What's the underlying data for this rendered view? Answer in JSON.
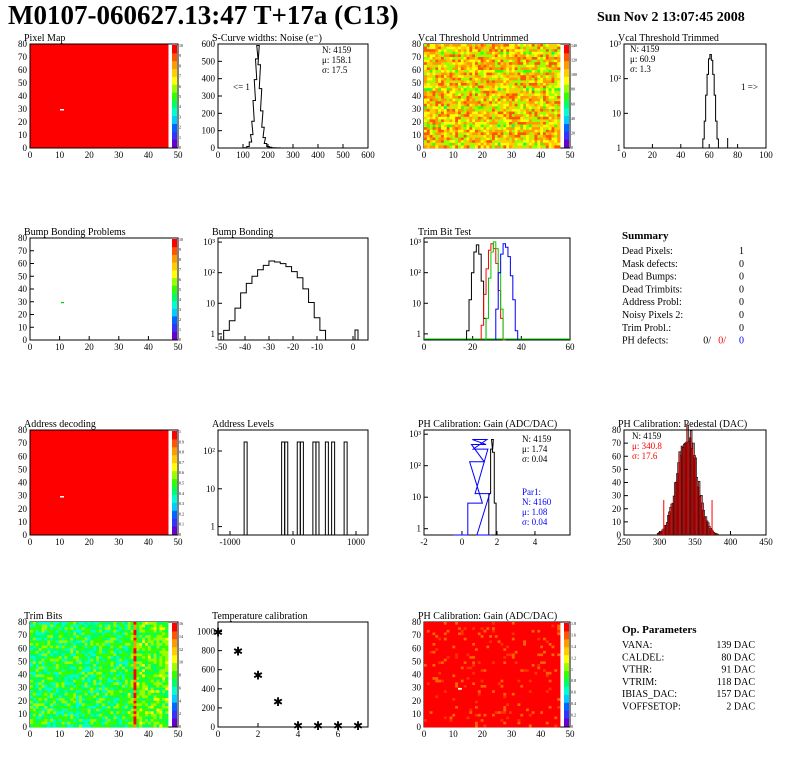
{
  "header": {
    "title": "M0107-060627.13:47 T+17a (C13)",
    "date": "Sun Nov  2 13:07:45 2008"
  },
  "colors": {
    "frame": "#000000",
    "hot_red": "#ff0000",
    "green": "#00cc00",
    "blue": "#0000ff",
    "pedestal_red": "#ff0000"
  },
  "chart_data": [
    {
      "type": "heatmap",
      "title": "Pixel Map",
      "x_ticks": [
        "0",
        "10",
        "20",
        "30",
        "40",
        "50"
      ],
      "y_ticks": [
        "0",
        "10",
        "20",
        "30",
        "40",
        "50",
        "60",
        "70",
        "80"
      ],
      "palette_labels": [
        "0",
        "1",
        "2",
        "3",
        "4",
        "5",
        "6",
        "7",
        "8",
        "9",
        "10"
      ],
      "description_values": {
        "uniform_value": 10,
        "dead_pixel_count": 1
      }
    },
    {
      "type": "line",
      "title": "S-Curve widths: Noise (e⁻)",
      "x_ticks": [
        "0",
        "100",
        "200",
        "300",
        "400",
        "500",
        "600"
      ],
      "y_ticks": [
        "0",
        "100",
        "200",
        "300",
        "400",
        "500",
        "600"
      ],
      "stats": [
        "N: 4159",
        "μ: 158.1",
        "σ: 17.5"
      ],
      "annotation": "<= 1",
      "xlim": [
        0,
        600
      ],
      "ylim": [
        0,
        700
      ],
      "x": [
        100,
        110,
        120,
        130,
        135,
        140,
        145,
        150,
        155,
        160,
        165,
        170,
        175,
        180,
        185,
        190,
        200,
        210,
        220,
        240,
        260
      ],
      "values": [
        0,
        2,
        10,
        40,
        90,
        180,
        320,
        460,
        600,
        690,
        560,
        400,
        250,
        140,
        70,
        30,
        10,
        5,
        2,
        1,
        0
      ]
    },
    {
      "type": "heatmap",
      "title": "Vcal Threshold Untrimmed",
      "x_ticks": [
        "0",
        "10",
        "20",
        "30",
        "40",
        "50"
      ],
      "y_ticks": [
        "0",
        "10",
        "20",
        "30",
        "40",
        "50",
        "60",
        "70",
        "80"
      ],
      "palette_labels": [
        "0",
        "20",
        "40",
        "60",
        "80",
        "100",
        "120",
        "140"
      ]
    },
    {
      "type": "line",
      "title": "Vcal Threshold Trimmed",
      "x_ticks": [
        "0",
        "20",
        "40",
        "60",
        "80",
        "100"
      ],
      "y_ticks": [
        "1",
        "10",
        "10²",
        "10³"
      ],
      "stats": [
        "N: 4159",
        "μ: 60.9",
        "σ: 1.3"
      ],
      "annotation": "1 =>",
      "log_y": true,
      "x": [
        55,
        56,
        57,
        58,
        59,
        60,
        61,
        62,
        63,
        64,
        65,
        66,
        67,
        68
      ],
      "values": [
        1,
        2,
        8,
        60,
        300,
        1000,
        1400,
        900,
        300,
        60,
        8,
        2,
        0,
        0
      ]
    },
    {
      "type": "heatmap",
      "title": "Bump Bonding Problems",
      "x_ticks": [
        "0",
        "10",
        "20",
        "30",
        "40",
        "50"
      ],
      "y_ticks": [
        "0",
        "10",
        "20",
        "30",
        "40",
        "50",
        "60",
        "70",
        "80"
      ],
      "palette_labels": [
        "0",
        "1",
        "2",
        "3",
        "4",
        "5",
        "6",
        "7",
        "8",
        "9",
        "10"
      ]
    },
    {
      "type": "line",
      "title": "Bump Bonding",
      "x_ticks": [
        "-50",
        "-40",
        "-30",
        "-20",
        "-10",
        "0"
      ],
      "y_ticks": [
        "1",
        "10",
        "10²",
        "10³"
      ],
      "log_y": true,
      "x": [
        -50,
        -48,
        -46,
        -44,
        -42,
        -40,
        -38,
        -36,
        -34,
        -32,
        -30,
        -28,
        -26,
        -24,
        -22,
        -20,
        -18,
        -16,
        -14,
        -12,
        -10
      ],
      "values": [
        1,
        2,
        4,
        10,
        30,
        60,
        100,
        160,
        220,
        300,
        280,
        250,
        200,
        140,
        90,
        40,
        15,
        5,
        2,
        1,
        1
      ]
    },
    {
      "type": "line",
      "title": "Trim Bit Test",
      "x_ticks": [
        "0",
        "20",
        "40",
        "60"
      ],
      "y_ticks": [
        "1",
        "10",
        "10²",
        "10³"
      ],
      "log_y": true,
      "series": [
        {
          "color": "#000000",
          "x": [
            18,
            19,
            20,
            21,
            22,
            23,
            24,
            25
          ],
          "values": [
            2,
            20,
            150,
            700,
            1200,
            600,
            80,
            5
          ]
        },
        {
          "color": "#ff0000",
          "x": [
            24,
            25,
            26,
            27,
            28,
            29,
            30,
            31,
            32,
            33
          ],
          "values": [
            3,
            30,
            200,
            800,
            1300,
            900,
            300,
            40,
            5,
            1
          ]
        },
        {
          "color": "#00cc00",
          "x": [
            26,
            27,
            28,
            29,
            30,
            31,
            32
          ],
          "values": [
            5,
            100,
            700,
            1500,
            900,
            150,
            10
          ]
        },
        {
          "color": "#0000ff",
          "x": [
            30,
            31,
            32,
            33,
            34,
            35,
            36,
            37,
            38
          ],
          "values": [
            10,
            150,
            600,
            1300,
            1000,
            500,
            120,
            20,
            2
          ]
        }
      ]
    },
    {
      "type": "table",
      "title": "Summary",
      "rows": [
        {
          "label": "Dead Pixels:",
          "value": "1"
        },
        {
          "label": "Mask defects:",
          "value": "0"
        },
        {
          "label": "Dead Bumps:",
          "value": "0"
        },
        {
          "label": "Dead Trimbits:",
          "value": "0"
        },
        {
          "label": "Address Probl:",
          "value": "0"
        },
        {
          "label": "Noisy Pixels 2:",
          "value": "0"
        },
        {
          "label": "Trim Probl.:",
          "value": "0"
        }
      ],
      "ph_defects": {
        "label": "PH defects:",
        "v1": "0/",
        "v2": "0/",
        "v3": "0"
      }
    },
    {
      "type": "heatmap",
      "title": "Address decoding",
      "x_ticks": [
        "0",
        "10",
        "20",
        "30",
        "40",
        "50"
      ],
      "y_ticks": [
        "0",
        "10",
        "20",
        "30",
        "40",
        "50",
        "60",
        "70",
        "80"
      ],
      "palette_labels": [
        "0",
        "0.1",
        "0.2",
        "0.3",
        "0.4",
        "0.5",
        "0.6",
        "0.7",
        "0.8",
        "0.9",
        "1"
      ]
    },
    {
      "type": "line",
      "title": "Address Levels",
      "x_ticks": [
        "-1000",
        "0",
        "1000"
      ],
      "y_ticks": [
        "1",
        "10",
        "10²"
      ],
      "log_y": true,
      "peaks": [
        -750,
        -150,
        -100,
        100,
        150,
        350,
        400,
        550,
        650,
        850
      ]
    },
    {
      "type": "line",
      "title": "PH Calibration: Gain (ADC/DAC)",
      "x_ticks": [
        "-2",
        "0",
        "2",
        "4"
      ],
      "y_ticks": [
        "1",
        "10",
        "10²",
        "10³"
      ],
      "stats": [
        "N: 4159",
        "μ: 1.74",
        "σ: 0.04"
      ],
      "stats2": [
        "Par1:",
        "N: 4160",
        "μ: 1.08",
        "σ: 0.04"
      ],
      "log_y": true,
      "series": [
        {
          "color": "#000000",
          "x": [
            1.5,
            1.6,
            1.7,
            1.75,
            1.8,
            1.9,
            2.0
          ],
          "values": [
            1,
            20,
            500,
            1000,
            400,
            10,
            1
          ]
        },
        {
          "color": "#0000ff",
          "x": [
            0.0,
            0.8,
            0.9,
            1.0,
            1.05,
            1.1,
            1.2,
            1.3
          ],
          "values": [
            1,
            10,
            200,
            700,
            1000,
            500,
            20,
            1
          ]
        }
      ]
    },
    {
      "type": "bar",
      "title": "PH Calibration: Pedestal (DAC)",
      "x_ticks": [
        "250",
        "300",
        "350",
        "400",
        "450"
      ],
      "y_ticks": [
        "0",
        "10",
        "20",
        "30",
        "40",
        "50",
        "60",
        "70",
        "80"
      ],
      "stats": [
        "N: 4159",
        "μ: 340.8",
        "σ: 17.6"
      ],
      "xlim": [
        230,
        480
      ],
      "ylim": [
        0,
        90
      ],
      "mean": 340.8,
      "sigma": 17.6,
      "peak": 85
    },
    {
      "type": "heatmap",
      "title": "Trim Bits",
      "x_ticks": [
        "0",
        "10",
        "20",
        "30",
        "40",
        "50"
      ],
      "y_ticks": [
        "0",
        "10",
        "20",
        "30",
        "40",
        "50",
        "60",
        "70",
        "80"
      ],
      "palette_labels": [
        "0",
        "2",
        "4",
        "6",
        "8",
        "10",
        "12",
        "14",
        "16"
      ]
    },
    {
      "type": "scatter",
      "title": "Temperature calibration",
      "x_ticks": [
        "0",
        "2",
        "4",
        "6"
      ],
      "y_ticks": [
        "0",
        "200",
        "400",
        "600",
        "800",
        "1000"
      ],
      "xlim": [
        0,
        7.5
      ],
      "ylim": [
        0,
        1100
      ],
      "x": [
        0,
        1,
        2,
        3,
        4,
        5,
        6,
        7
      ],
      "values": [
        1000,
        800,
        550,
        270,
        20,
        20,
        20,
        20
      ]
    },
    {
      "type": "heatmap",
      "title": "PH Calibration: Gain (ADC/DAC)",
      "x_ticks": [
        "0",
        "10",
        "20",
        "30",
        "40",
        "50"
      ],
      "y_ticks": [
        "0",
        "10",
        "20",
        "30",
        "40",
        "50",
        "60",
        "70",
        "80"
      ],
      "palette_labels": [
        "0",
        "0.2",
        "0.4",
        "0.6",
        "0.8",
        "1",
        "1.2",
        "1.4",
        "1.6",
        "1.8"
      ]
    },
    {
      "type": "table",
      "title": "Op. Parameters",
      "rows": [
        {
          "label": "VANA:",
          "value": "139 DAC"
        },
        {
          "label": "CALDEL:",
          "value": "80 DAC"
        },
        {
          "label": "VTHR:",
          "value": "91 DAC"
        },
        {
          "label": "VTRIM:",
          "value": "118 DAC"
        },
        {
          "label": "IBIAS_DAC:",
          "value": "157 DAC"
        },
        {
          "label": "VOFFSETOP:",
          "value": "2 DAC"
        }
      ]
    }
  ]
}
